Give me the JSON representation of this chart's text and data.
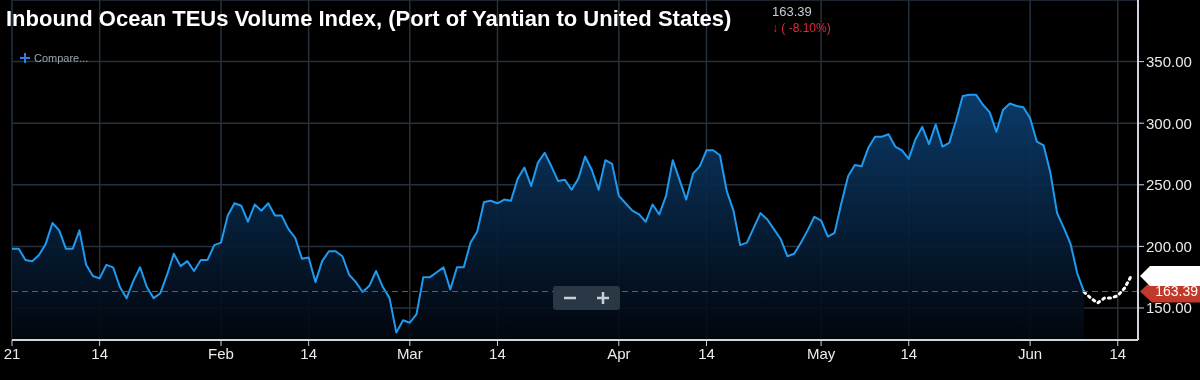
{
  "chart_data": {
    "type": "area",
    "title": "Inbound Ocean TEUs Volume Index, (Port of Yantian to United States)",
    "annotations": [
      "163.39",
      "↓ ( -8.10%)",
      "Compare..."
    ],
    "xlim": [
      "--01-01",
      "--06-17"
    ],
    "xticks": [
      {
        "value": "--01-01",
        "label": "21"
      },
      {
        "value": "--01-14",
        "label": "14"
      },
      {
        "value": "--02-01",
        "label": "Feb"
      },
      {
        "value": "--02-14",
        "label": "14"
      },
      {
        "value": "--03-01",
        "label": "Mar"
      },
      {
        "value": "--03-14",
        "label": "14"
      },
      {
        "value": "--04-01",
        "label": "Apr"
      },
      {
        "value": "--04-14",
        "label": "14"
      },
      {
        "value": "--05-01",
        "label": "May"
      },
      {
        "value": "--05-14",
        "label": "14"
      },
      {
        "value": "--06-01",
        "label": "Jun"
      },
      {
        "value": "--06-14",
        "label": "14"
      }
    ],
    "ylim": [
      124,
      400
    ],
    "yticks": [
      {
        "value": 150,
        "label": "150.00"
      },
      {
        "value": 200,
        "label": "200.00"
      },
      {
        "value": 250,
        "label": "250.00"
      },
      {
        "value": 300,
        "label": "300.00"
      },
      {
        "value": 350,
        "label": "350.00"
      }
    ],
    "grid": true,
    "ref_lines": [
      {
        "axis": "y",
        "value": 163.39,
        "label": "163.39",
        "color": "#c0392b",
        "line_style": "dashed"
      }
    ],
    "series": [
      {
        "color": "#1e9bf0",
        "x": [
          "--01-01",
          "--01-02",
          "--01-03",
          "--01-04",
          "--01-05",
          "--01-06",
          "--01-07",
          "--01-08",
          "--01-09",
          "--01-10",
          "--01-11",
          "--01-12",
          "--01-13",
          "--01-14",
          "--01-15",
          "--01-16",
          "--01-17",
          "--01-18",
          "--01-19",
          "--01-20",
          "--01-21",
          "--01-22",
          "--01-23",
          "--01-24",
          "--01-25",
          "--01-26",
          "--01-27",
          "--01-28",
          "--01-29",
          "--01-30",
          "--01-31",
          "--02-01",
          "--02-02",
          "--02-03",
          "--02-04",
          "--02-05",
          "--02-06",
          "--02-07",
          "--02-08",
          "--02-09",
          "--02-10",
          "--02-11",
          "--02-12",
          "--02-13",
          "--02-14",
          "--02-15",
          "--02-16",
          "--02-17",
          "--02-18",
          "--02-19",
          "--02-20",
          "--02-21",
          "--02-22",
          "--02-23",
          "--02-24",
          "--02-25",
          "--02-26",
          "--02-27",
          "--02-28",
          "--03-01",
          "--03-02",
          "--03-03",
          "--03-04",
          "--03-05",
          "--03-06",
          "--03-07",
          "--03-08",
          "--03-09",
          "--03-10",
          "--03-11",
          "--03-12",
          "--03-13",
          "--03-14",
          "--03-15",
          "--03-16",
          "--03-17",
          "--03-18",
          "--03-19",
          "--03-20",
          "--03-21",
          "--03-22",
          "--03-23",
          "--03-24",
          "--03-25",
          "--03-26",
          "--03-27",
          "--03-28",
          "--03-29",
          "--03-30",
          "--03-31",
          "--04-01",
          "--04-02",
          "--04-03",
          "--04-04",
          "--04-05",
          "--04-06",
          "--04-07",
          "--04-08",
          "--04-09",
          "--04-10",
          "--04-11",
          "--04-12",
          "--04-13",
          "--04-14",
          "--04-15",
          "--04-16",
          "--04-17",
          "--04-18",
          "--04-19",
          "--04-20",
          "--04-21",
          "--04-22",
          "--04-23",
          "--04-24",
          "--04-25",
          "--04-26",
          "--04-27",
          "--04-28",
          "--04-29",
          "--04-30",
          "--05-01",
          "--05-02",
          "--05-03",
          "--05-04",
          "--05-05",
          "--05-06",
          "--05-07",
          "--05-08",
          "--05-09",
          "--05-10",
          "--05-11",
          "--05-12",
          "--05-13",
          "--05-14",
          "--05-15",
          "--05-16",
          "--05-17",
          "--05-18",
          "--05-19",
          "--05-20",
          "--05-21",
          "--05-22",
          "--05-23",
          "--05-24",
          "--05-25",
          "--05-26",
          "--05-27",
          "--05-28",
          "--05-29",
          "--05-30",
          "--05-31",
          "--06-01",
          "--06-02",
          "--06-03",
          "--06-04",
          "--06-05",
          "--06-06",
          "--06-07",
          "--06-08",
          "--06-09"
        ],
        "values": [
          198,
          198,
          189,
          188,
          193,
          202,
          219,
          213,
          198,
          198,
          213,
          185,
          176,
          174,
          185,
          183,
          167,
          158,
          172,
          183,
          167,
          158,
          162,
          177,
          194,
          184,
          188,
          180,
          189,
          189,
          201,
          203,
          225,
          235,
          233,
          220,
          234,
          229,
          235,
          225,
          225,
          214,
          207,
          190,
          191,
          171,
          188,
          196,
          196,
          192,
          177,
          171,
          163,
          168,
          180,
          167,
          158,
          130,
          140,
          138,
          145,
          175,
          175,
          179,
          183,
          165,
          183,
          183,
          203,
          212,
          236,
          237,
          235,
          238,
          237,
          255,
          264,
          249,
          268,
          276,
          265,
          253,
          254,
          246,
          255,
          273,
          262,
          246,
          270,
          267,
          241,
          235,
          229,
          226,
          220,
          234,
          226,
          241,
          270,
          254,
          238,
          259,
          265,
          278,
          278,
          274,
          245,
          229,
          201,
          203,
          215,
          227,
          222,
          214,
          206,
          192,
          194,
          203,
          213,
          224,
          221,
          208,
          211,
          235,
          257,
          266,
          265,
          280,
          289,
          289,
          291,
          281,
          278,
          271,
          287,
          297,
          283,
          299,
          281,
          284,
          302,
          322,
          323,
          323,
          315,
          309,
          293,
          311,
          316,
          314,
          313,
          304,
          285,
          282,
          260,
          227,
          215,
          202,
          178,
          163
        ]
      },
      {
        "type": "line",
        "color": "#ffffff",
        "line_style": "dotted",
        "x": [
          "--06-09",
          "--06-10",
          "--06-11",
          "--06-12",
          "--06-13",
          "--06-14",
          "--06-15",
          "--06-16"
        ],
        "values": [
          163,
          158,
          154,
          158,
          158,
          160,
          166,
          176
        ]
      }
    ]
  }
}
